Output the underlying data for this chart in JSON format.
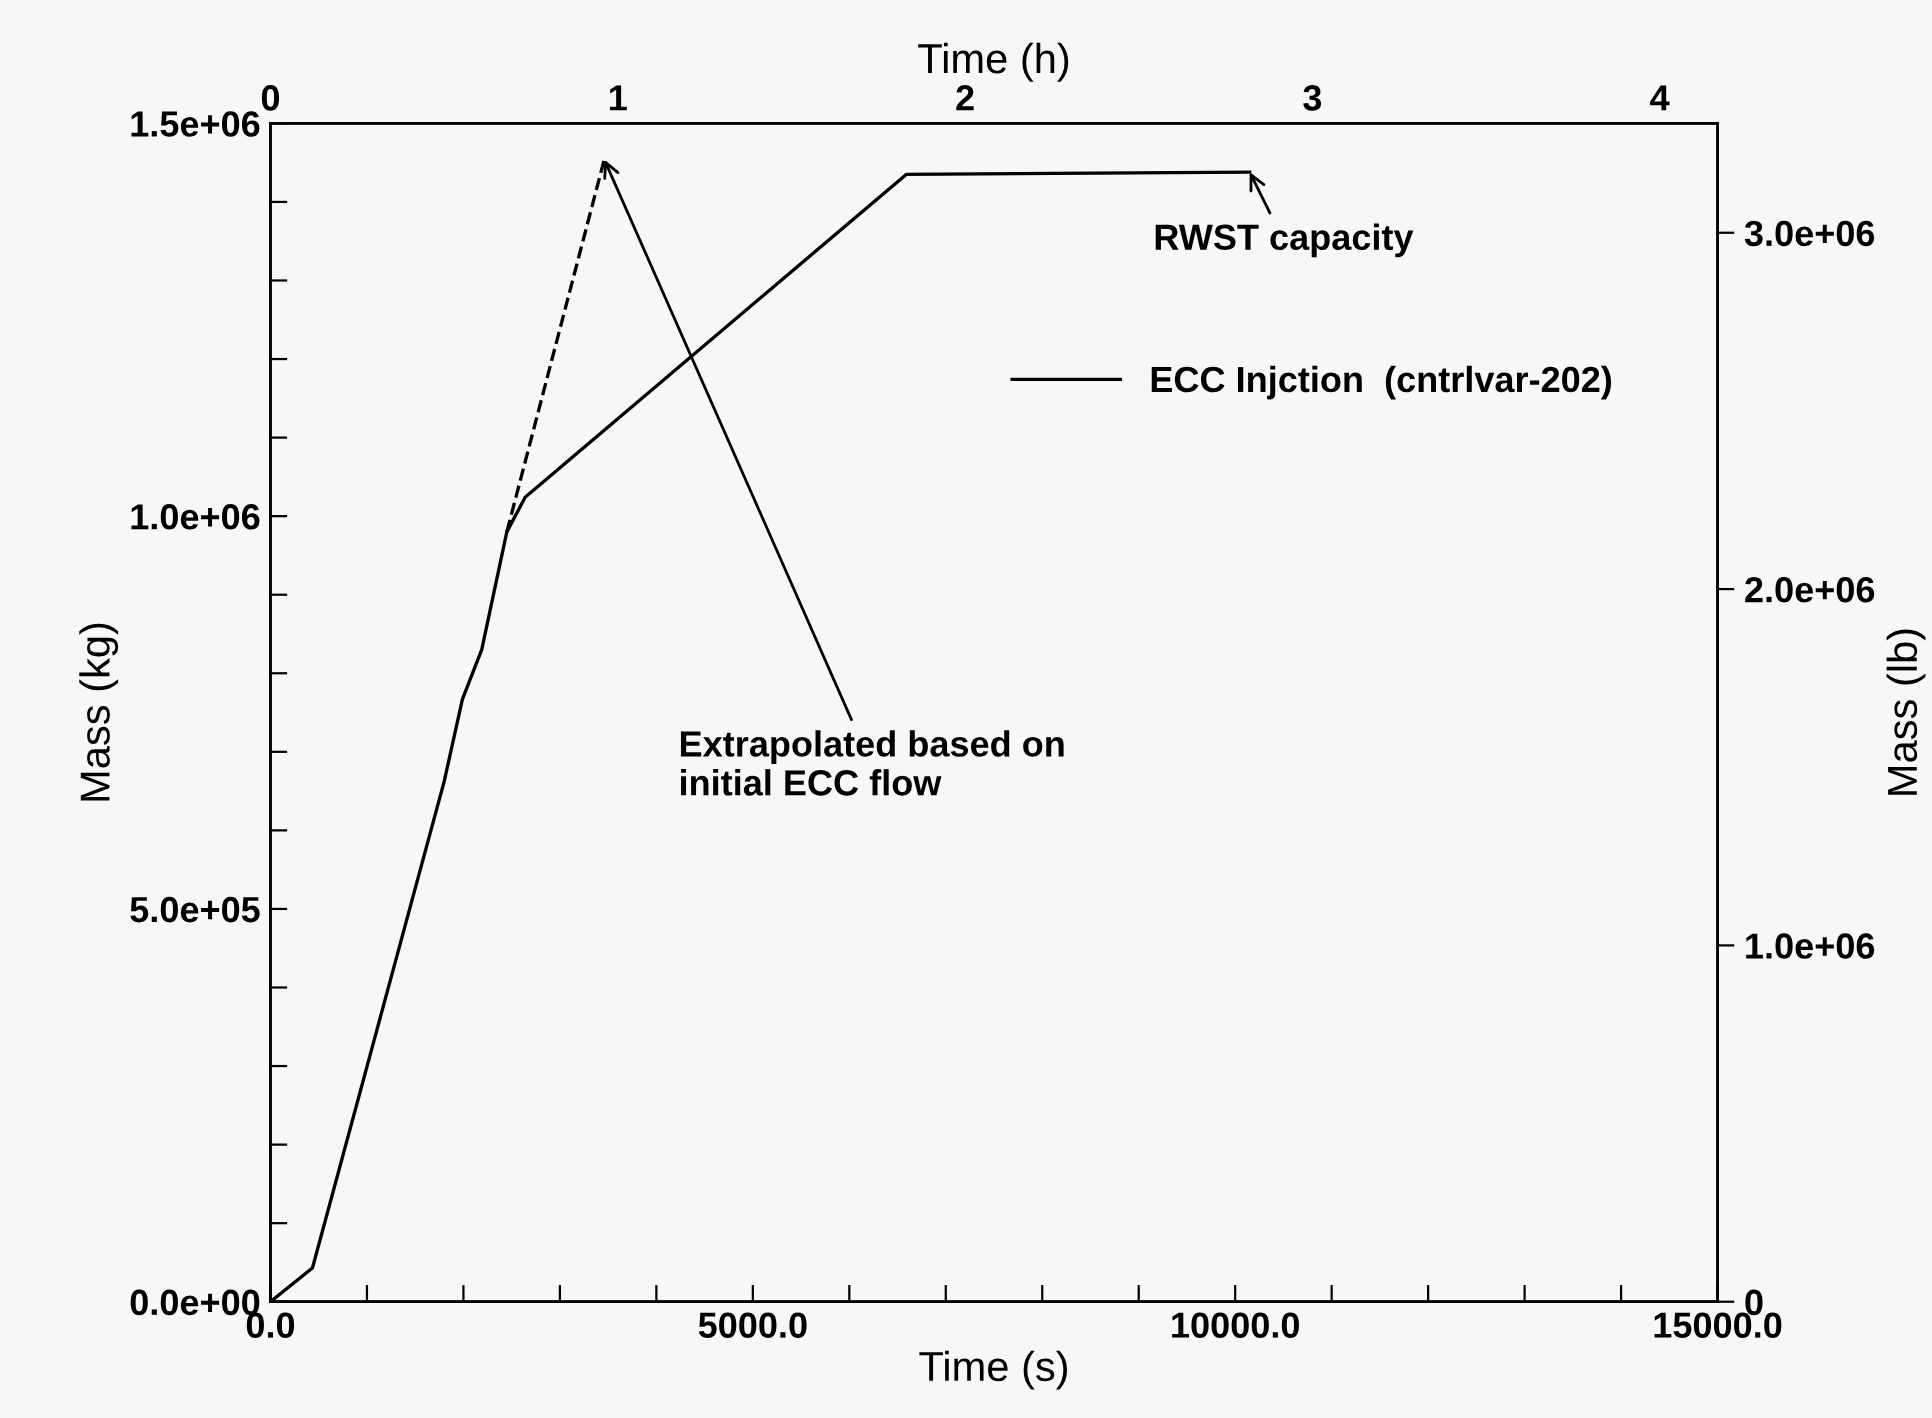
{
  "chart_data": {
    "type": "line",
    "xlabel": "Time (s)",
    "ylabel": "Mass (kg)",
    "y2label": "Mass (lb)",
    "x2label": "Time (h)",
    "series": [
      {
        "name": "ECC Injction  (cntrlvar-202)",
        "color": "#000000",
        "line_style": "solid",
        "x": [
          0,
          435,
          1800,
          1990,
          2190,
          2450,
          2640,
          6590,
          10150
        ],
        "values": [
          0,
          43000,
          662000,
          767000,
          830000,
          980000,
          1024000,
          1435000,
          1438000
        ]
      },
      {
        "color": "#000000",
        "line_style": "dashed",
        "x": [
          2450,
          3460
        ],
        "values": [
          980000,
          1454000
        ]
      }
    ],
    "xlim": [
      0,
      15000
    ],
    "xticks": [
      {
        "value": 0,
        "label": "0.0"
      },
      {
        "value": 1000,
        "label": null
      },
      {
        "value": 2000,
        "label": null
      },
      {
        "value": 3000,
        "label": null
      },
      {
        "value": 4000,
        "label": null
      },
      {
        "value": 5000,
        "label": "5000.0"
      },
      {
        "value": 6000,
        "label": null
      },
      {
        "value": 7000,
        "label": null
      },
      {
        "value": 8000,
        "label": null
      },
      {
        "value": 9000,
        "label": null
      },
      {
        "value": 10000,
        "label": "10000.0"
      },
      {
        "value": 11000,
        "label": null
      },
      {
        "value": 12000,
        "label": null
      },
      {
        "value": 13000,
        "label": null
      },
      {
        "value": 14000,
        "label": null
      },
      {
        "value": 15000,
        "label": "15000.0"
      }
    ],
    "ylim": [
      0,
      1500000
    ],
    "yticks": [
      {
        "value": 0,
        "label": "0.0e+00"
      },
      {
        "value": 100000,
        "label": null
      },
      {
        "value": 200000,
        "label": null
      },
      {
        "value": 300000,
        "label": null
      },
      {
        "value": 400000,
        "label": null
      },
      {
        "value": 500000,
        "label": "5.0e+05"
      },
      {
        "value": 600000,
        "label": null
      },
      {
        "value": 700000,
        "label": null
      },
      {
        "value": 800000,
        "label": null
      },
      {
        "value": 900000,
        "label": null
      },
      {
        "value": 1000000,
        "label": "1.0e+06"
      },
      {
        "value": 1100000,
        "label": null
      },
      {
        "value": 1200000,
        "label": null
      },
      {
        "value": 1300000,
        "label": null
      },
      {
        "value": 1400000,
        "label": null
      },
      {
        "value": 1500000,
        "label": "1.5e+06"
      }
    ],
    "x2lim": [
      0,
      4.1667
    ],
    "x2ticks": [
      0,
      1,
      2,
      3,
      4
    ],
    "y2lim": [
      0,
      3307000
    ],
    "y2ticks": [
      0,
      {
        "value": 1000000,
        "label": "1.0e+06"
      },
      {
        "value": 2000000,
        "label": "2.0e+06"
      },
      {
        "value": 3000000,
        "label": "3.0e+06"
      }
    ],
    "annotations": [
      {
        "text": "RWST capacity",
        "x": 10150,
        "y": 1438000
      },
      {
        "text": "Extrapolated based on\ninitial ECC flow",
        "x": 3460,
        "y": 1454000
      }
    ],
    "legend": "right",
    "grid": false,
    "marker": "none"
  }
}
